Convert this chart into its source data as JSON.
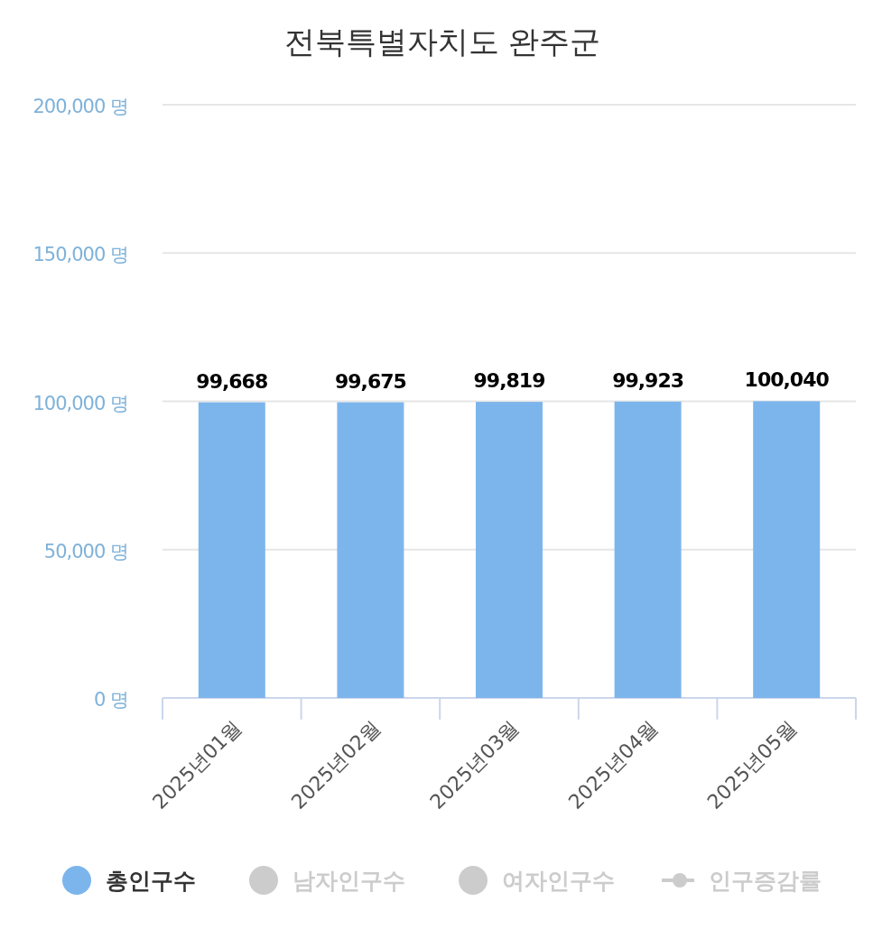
{
  "chart_data": {
    "type": "bar",
    "title": "전북특별자치도 완주군",
    "categories": [
      "2025년01월",
      "2025년02월",
      "2025년03월",
      "2025년04월",
      "2025년05월"
    ],
    "series": [
      {
        "name": "총인구수",
        "color": "#7cb5ec",
        "values": [
          99668,
          99675,
          99819,
          99923,
          100040
        ],
        "value_labels": [
          "99,668",
          "99,675",
          "99,819",
          "99,923",
          "100,040"
        ]
      },
      {
        "name": "남자인구수",
        "color": "#cccccc",
        "values": [
          null,
          null,
          null,
          null,
          null
        ]
      },
      {
        "name": "여자인구수",
        "color": "#cccccc",
        "values": [
          null,
          null,
          null,
          null,
          null
        ]
      },
      {
        "name": "인구증감률",
        "type": "line",
        "color": "#cccccc",
        "values": [
          null,
          null,
          null,
          null,
          null
        ]
      }
    ],
    "ylim": [
      0,
      200000
    ],
    "yticks": [
      {
        "value": 0,
        "label": "0 명"
      },
      {
        "value": 50000,
        "label": "50,000 명"
      },
      {
        "value": 100000,
        "label": "100,000 명"
      },
      {
        "value": 150000,
        "label": "150,000 명"
      },
      {
        "value": 200000,
        "label": "200,000 명"
      }
    ],
    "grid": "y",
    "legend": "bottom"
  }
}
